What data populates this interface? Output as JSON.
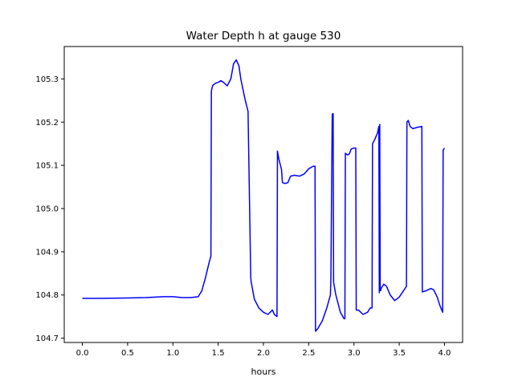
{
  "chart_data": {
    "type": "line",
    "title": "Water Depth h at gauge 530",
    "xlabel": "hours",
    "ylabel": "",
    "xlim": [
      -0.2,
      4.2
    ],
    "ylim": [
      104.69,
      105.375
    ],
    "x_ticks": [
      "0.0",
      "0.5",
      "1.0",
      "1.5",
      "2.0",
      "2.5",
      "3.0",
      "3.5",
      "4.0"
    ],
    "y_ticks": [
      "104.7",
      "104.8",
      "104.9",
      "105.0",
      "105.1",
      "105.2",
      "105.3"
    ],
    "grid": false,
    "line_color": "#0000ff",
    "series": [
      {
        "x": [
          0.0,
          0.2,
          0.5,
          0.7,
          0.9,
          1.0,
          1.1,
          1.2,
          1.28,
          1.32,
          1.36,
          1.4,
          1.42,
          1.425,
          1.44,
          1.47,
          1.5,
          1.53,
          1.56,
          1.6,
          1.64,
          1.67,
          1.7,
          1.73,
          1.75,
          1.77,
          1.8,
          1.83,
          1.86,
          1.865,
          1.9,
          1.95,
          2.0,
          2.05,
          2.1,
          2.12,
          2.15,
          2.155,
          2.17,
          2.2,
          2.21,
          2.24,
          2.27,
          2.3,
          2.34,
          2.4,
          2.45,
          2.5,
          2.55,
          2.57,
          2.575,
          2.6,
          2.65,
          2.7,
          2.74,
          2.745,
          2.76,
          2.77,
          2.775,
          2.8,
          2.85,
          2.89,
          2.9,
          2.905,
          2.93,
          2.95,
          2.97,
          3.0,
          3.02,
          3.025,
          3.05,
          3.1,
          3.15,
          3.18,
          3.2,
          3.205,
          3.23,
          3.26,
          3.275,
          3.28,
          3.285,
          3.29,
          3.295,
          3.3,
          3.33,
          3.36,
          3.4,
          3.45,
          3.5,
          3.58,
          3.585,
          3.6,
          3.62,
          3.65,
          3.7,
          3.75,
          3.755,
          3.8,
          3.85,
          3.88,
          3.92,
          3.95,
          3.98,
          3.985,
          4.0
        ],
        "y": [
          104.792,
          104.792,
          104.793,
          104.794,
          104.796,
          104.796,
          104.794,
          104.794,
          104.796,
          104.81,
          104.84,
          104.875,
          104.89,
          105.272,
          105.285,
          105.29,
          105.292,
          105.296,
          105.292,
          105.284,
          105.3,
          105.335,
          105.344,
          105.33,
          105.3,
          105.28,
          105.25,
          105.225,
          104.84,
          104.83,
          104.79,
          104.77,
          104.76,
          104.755,
          104.765,
          104.755,
          104.75,
          105.133,
          105.115,
          105.09,
          105.06,
          105.058,
          105.06,
          105.075,
          105.077,
          105.075,
          105.08,
          105.092,
          105.098,
          105.098,
          104.716,
          104.722,
          104.74,
          104.77,
          104.8,
          104.835,
          105.218,
          105.22,
          104.83,
          104.8,
          104.76,
          104.745,
          104.745,
          105.128,
          105.124,
          105.127,
          105.138,
          105.14,
          105.14,
          104.765,
          104.765,
          104.755,
          104.76,
          104.77,
          104.77,
          105.15,
          105.16,
          105.175,
          105.19,
          104.805,
          105.195,
          104.81,
          104.81,
          104.815,
          104.825,
          104.82,
          104.8,
          104.787,
          104.795,
          104.82,
          105.2,
          105.204,
          105.19,
          105.185,
          105.188,
          105.19,
          104.807,
          104.81,
          104.815,
          104.812,
          104.795,
          104.775,
          104.76,
          105.135,
          105.14
        ]
      }
    ]
  }
}
